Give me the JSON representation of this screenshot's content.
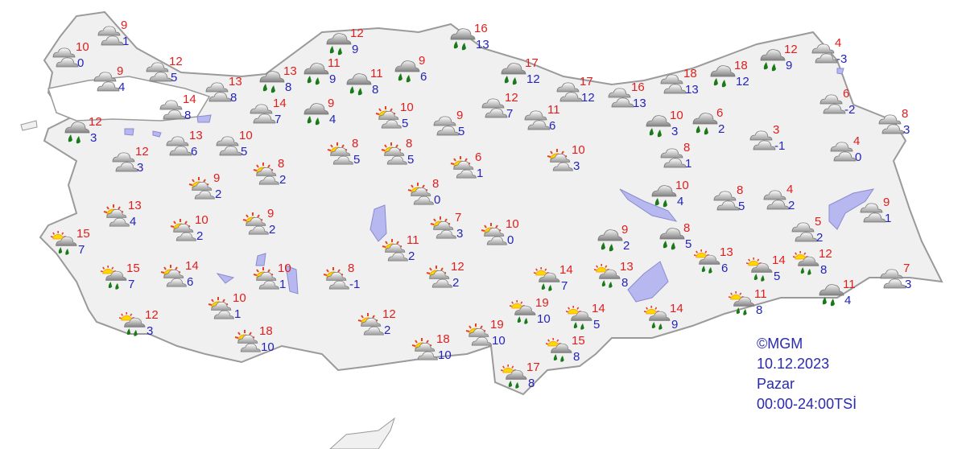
{
  "legend": {
    "copyright": "©MGM",
    "date": "10.12.2023",
    "day": "Pazar",
    "period": "00:00-24:00TSİ"
  },
  "colors": {
    "high_temp": "#e01e1e",
    "low_temp": "#2424b8",
    "land": "#f0f0f0",
    "water": "#b8b8f0",
    "border": "#9a9a9a"
  },
  "conditions": {
    "cloudy": "cloudy-icon",
    "rain": "rain-icon",
    "partly": "partly-cloudy-icon",
    "showers": "sun-cloud-rain-icon"
  },
  "stations": [
    {
      "c": "cloudy",
      "hi": "9",
      "lo": "1"
    },
    {
      "c": "cloudy",
      "hi": "10",
      "lo": "0"
    },
    {
      "c": "cloudy",
      "hi": "9",
      "lo": "4"
    },
    {
      "c": "cloudy",
      "hi": "12",
      "lo": "5"
    },
    {
      "c": "cloudy",
      "hi": "13",
      "lo": "8"
    },
    {
      "c": "cloudy",
      "hi": "14",
      "lo": "8"
    },
    {
      "c": "rain",
      "hi": "13",
      "lo": "8"
    },
    {
      "c": "cloudy",
      "hi": "14",
      "lo": "7"
    },
    {
      "c": "rain",
      "hi": "12",
      "lo": "3"
    },
    {
      "c": "cloudy",
      "hi": "13",
      "lo": "6"
    },
    {
      "c": "cloudy",
      "hi": "10",
      "lo": "5"
    },
    {
      "c": "cloudy",
      "hi": "12",
      "lo": "3"
    },
    {
      "c": "partly",
      "hi": "8",
      "lo": "2"
    },
    {
      "c": "partly",
      "hi": "9",
      "lo": "2"
    },
    {
      "c": "partly",
      "hi": "13",
      "lo": "4"
    },
    {
      "c": "partly",
      "hi": "10",
      "lo": "2"
    },
    {
      "c": "partly",
      "hi": "9",
      "lo": "2"
    },
    {
      "c": "rain",
      "hi": "12",
      "lo": "9"
    },
    {
      "c": "rain",
      "hi": "11",
      "lo": "9"
    },
    {
      "c": "rain",
      "hi": "11",
      "lo": "8"
    },
    {
      "c": "rain",
      "hi": "9",
      "lo": "6"
    },
    {
      "c": "rain",
      "hi": "9",
      "lo": "4"
    },
    {
      "c": "rain",
      "hi": "16",
      "lo": "13"
    },
    {
      "c": "rain",
      "hi": "17",
      "lo": "12"
    },
    {
      "c": "cloudy",
      "hi": "17",
      "lo": "12"
    },
    {
      "c": "cloudy",
      "hi": "16",
      "lo": "13"
    },
    {
      "c": "partly",
      "hi": "10",
      "lo": "5"
    },
    {
      "c": "cloudy",
      "hi": "9",
      "lo": "5"
    },
    {
      "c": "cloudy",
      "hi": "12",
      "lo": "7"
    },
    {
      "c": "cloudy",
      "hi": "11",
      "lo": "6"
    },
    {
      "c": "partly",
      "hi": "8",
      "lo": "5"
    },
    {
      "c": "partly",
      "hi": "8",
      "lo": "5"
    },
    {
      "c": "partly",
      "hi": "6",
      "lo": "1"
    },
    {
      "c": "partly",
      "hi": "10",
      "lo": "3"
    },
    {
      "c": "partly",
      "hi": "8",
      "lo": "0"
    },
    {
      "c": "partly",
      "hi": "7",
      "lo": "3"
    },
    {
      "c": "partly",
      "hi": "10",
      "lo": "0"
    },
    {
      "c": "partly",
      "hi": "11",
      "lo": "2"
    },
    {
      "c": "partly",
      "hi": "8",
      "lo": "-1"
    },
    {
      "c": "partly",
      "hi": "12",
      "lo": "2"
    },
    {
      "c": "partly",
      "hi": "12",
      "lo": "2"
    },
    {
      "c": "partly",
      "hi": "18",
      "lo": "10"
    },
    {
      "c": "partly",
      "hi": "19",
      "lo": "10"
    },
    {
      "c": "showers",
      "hi": "14",
      "lo": "7"
    },
    {
      "c": "showers",
      "hi": "13",
      "lo": "8"
    },
    {
      "c": "showers",
      "hi": "19",
      "lo": "10"
    },
    {
      "c": "showers",
      "hi": "14",
      "lo": "5"
    },
    {
      "c": "showers",
      "hi": "15",
      "lo": "8"
    },
    {
      "c": "showers",
      "hi": "17",
      "lo": "8"
    },
    {
      "c": "rain",
      "hi": "9",
      "lo": "2"
    },
    {
      "c": "cloudy",
      "hi": "18",
      "lo": "13"
    },
    {
      "c": "rain",
      "hi": "18",
      "lo": "12"
    },
    {
      "c": "rain",
      "hi": "12",
      "lo": "9"
    },
    {
      "c": "cloudy",
      "hi": "4",
      "lo": "-3"
    },
    {
      "c": "cloudy",
      "hi": "6",
      "lo": "-2"
    },
    {
      "c": "cloudy",
      "hi": "8",
      "lo": "3"
    },
    {
      "c": "rain",
      "hi": "10",
      "lo": "3"
    },
    {
      "c": "rain",
      "hi": "6",
      "lo": "2"
    },
    {
      "c": "cloudy",
      "hi": "3",
      "lo": "-1"
    },
    {
      "c": "cloudy",
      "hi": "4",
      "lo": "0"
    },
    {
      "c": "cloudy",
      "hi": "8",
      "lo": "1"
    },
    {
      "c": "rain",
      "hi": "10",
      "lo": "4"
    },
    {
      "c": "cloudy",
      "hi": "8",
      "lo": "5"
    },
    {
      "c": "cloudy",
      "hi": "4",
      "lo": "2"
    },
    {
      "c": "cloudy",
      "hi": "9",
      "lo": "1"
    },
    {
      "c": "cloudy",
      "hi": "5",
      "lo": "2"
    },
    {
      "c": "rain",
      "hi": "8",
      "lo": "5"
    },
    {
      "c": "showers",
      "hi": "13",
      "lo": "6"
    },
    {
      "c": "showers",
      "hi": "14",
      "lo": "5"
    },
    {
      "c": "showers",
      "hi": "12",
      "lo": "8"
    },
    {
      "c": "showers",
      "hi": "11",
      "lo": "8"
    },
    {
      "c": "showers",
      "hi": "14",
      "lo": "9"
    },
    {
      "c": "rain",
      "hi": "11",
      "lo": "4"
    },
    {
      "c": "cloudy",
      "hi": "7",
      "lo": "3"
    },
    {
      "c": "showers",
      "hi": "15",
      "lo": "7"
    },
    {
      "c": "showers",
      "hi": "15",
      "lo": "7"
    },
    {
      "c": "partly",
      "hi": "14",
      "lo": "6"
    },
    {
      "c": "partly",
      "hi": "10",
      "lo": "1"
    },
    {
      "c": "partly",
      "hi": "10",
      "lo": "1"
    },
    {
      "c": "showers",
      "hi": "12",
      "lo": "3"
    },
    {
      "c": "partly",
      "hi": "18",
      "lo": "10"
    }
  ]
}
